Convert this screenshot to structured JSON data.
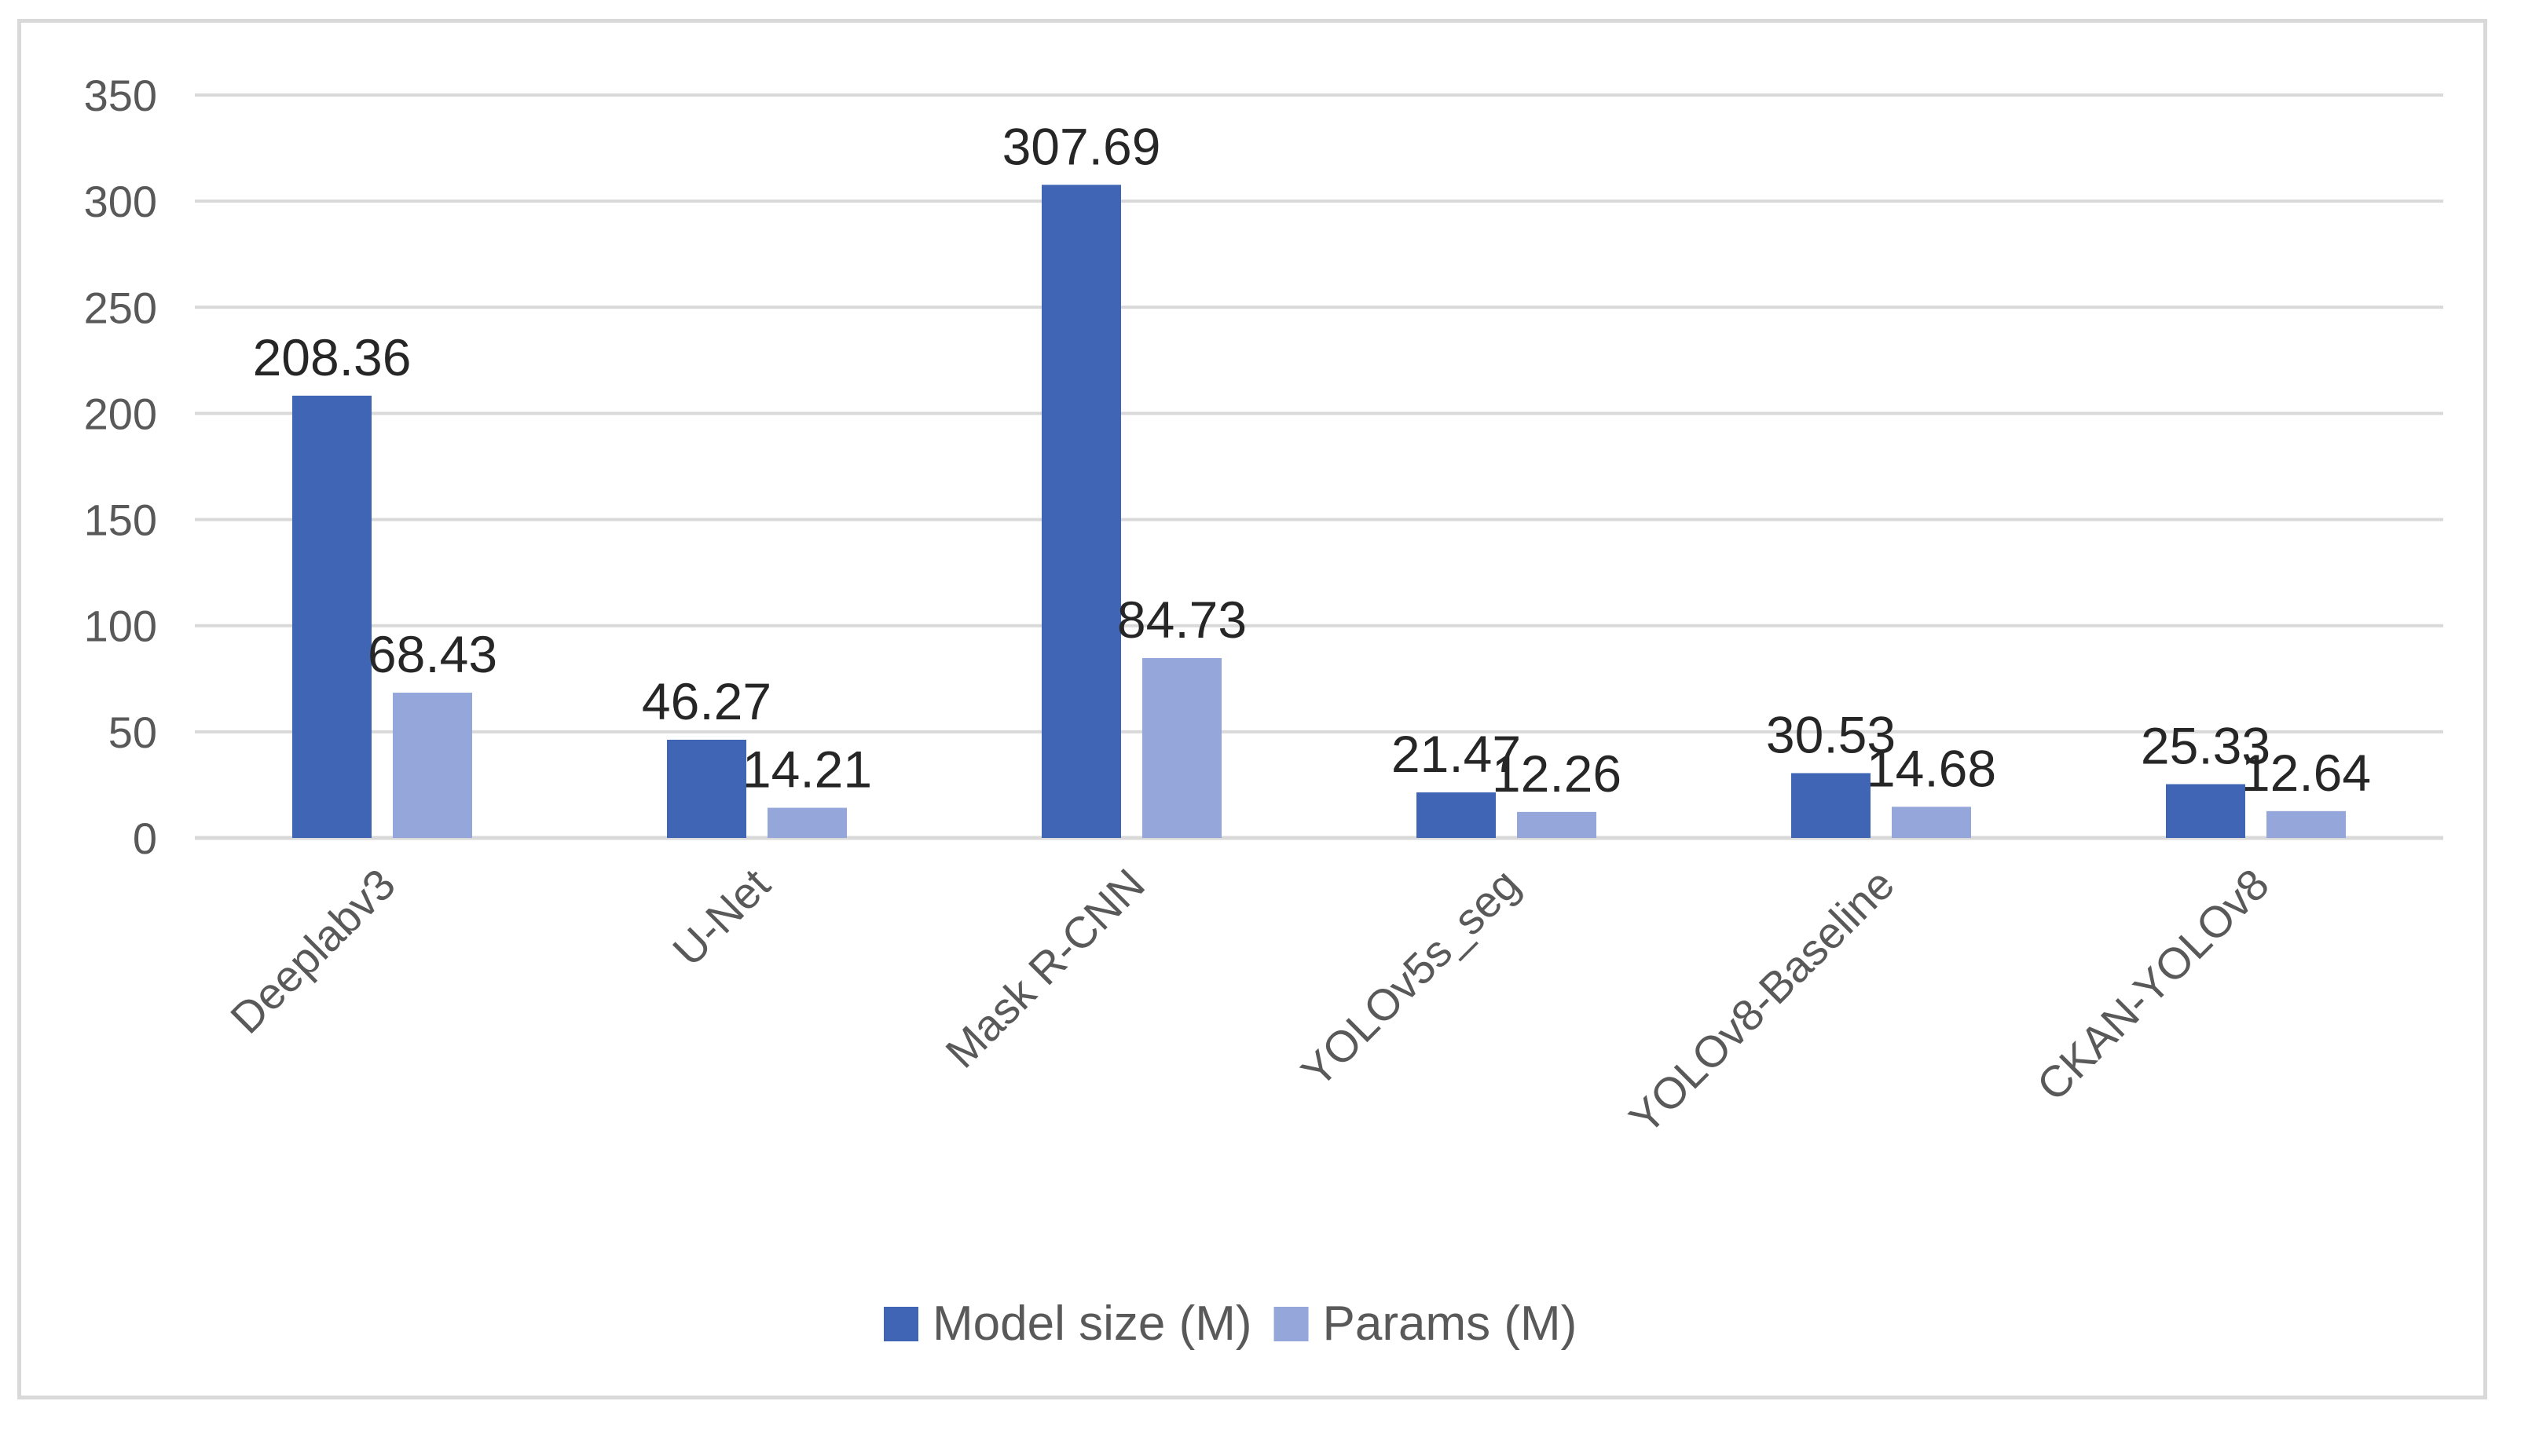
{
  "chart_data": {
    "type": "bar",
    "categories": [
      "Deeplabv3",
      "U-Net",
      "Mask R-CNN",
      "YOLOv5s_seg",
      "YOLOv8-Baseline",
      "CKAN-YOLOv8"
    ],
    "series": [
      {
        "name": "Model size (M)",
        "values": [
          208.36,
          46.27,
          307.69,
          21.47,
          30.53,
          25.33
        ],
        "labels": [
          "208.36",
          "46.27",
          "307.69",
          "21.47",
          "30.53",
          "25.33"
        ],
        "color": "#4065b4"
      },
      {
        "name": "Params (M)",
        "values": [
          68.43,
          14.21,
          84.73,
          12.26,
          14.68,
          12.64
        ],
        "labels": [
          "68.43",
          "14.21",
          "84.73",
          "12.26",
          "14.68",
          "12.64"
        ],
        "color": "#94a6da"
      }
    ],
    "yticks": [
      "0",
      "50",
      "100",
      "150",
      "200",
      "250",
      "300",
      "350"
    ],
    "ylim": [
      0,
      350
    ],
    "grid": true,
    "legend_position": "bottom",
    "gridline_color": "#d9d9d9",
    "axis_color": "#d9d9d9"
  }
}
